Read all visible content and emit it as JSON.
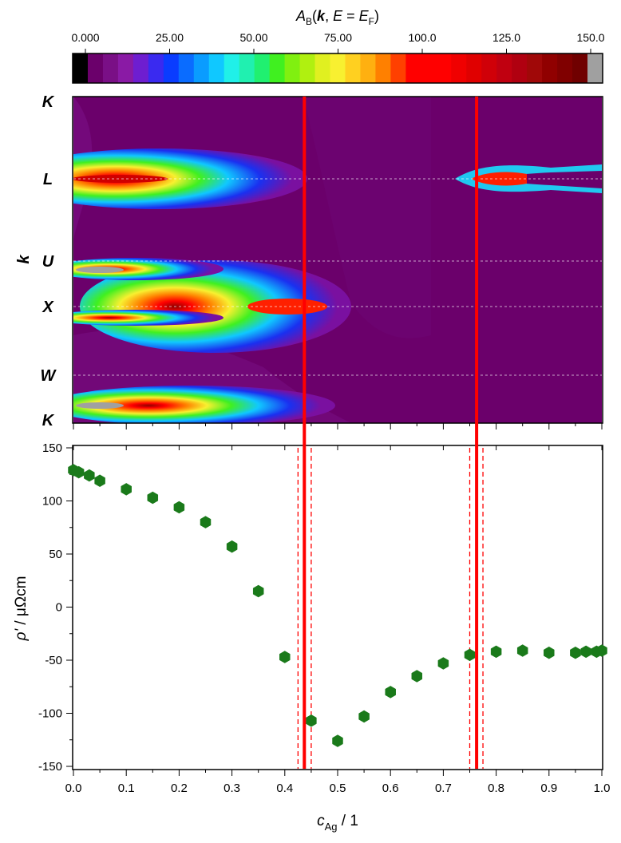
{
  "chart_data": [
    {
      "type": "heatmap",
      "title": "",
      "colorbar": {
        "label_main": "A",
        "label_sub": "B",
        "label_open": "(",
        "label_k": "k",
        "label_mid": ", ",
        "label_E": "E",
        "label_eq": " = ",
        "label_E2": "E",
        "label_sub2": "F",
        "label_close": ")",
        "ticks": [
          "0.000",
          "25.00",
          "50.00",
          "75.00",
          "100.0",
          "125.0",
          "150.0"
        ],
        "range": [
          0,
          150
        ],
        "colors": [
          "#000000",
          "#6b006b",
          "#7a0f86",
          "#8a1aa5",
          "#6e1ed0",
          "#3a2af0",
          "#0a3cff",
          "#0a6cff",
          "#0a9cff",
          "#10c8ff",
          "#20f0e8",
          "#20f0b0",
          "#20f070",
          "#40f020",
          "#80f010",
          "#b0f010",
          "#e0f020",
          "#f8f030",
          "#ffd020",
          "#ffb010",
          "#ff8000",
          "#ff4000",
          "#ff0000",
          "#ff0000",
          "#ff0000",
          "#f00000",
          "#e00000",
          "#d00008",
          "#c00010",
          "#b00010",
          "#a00808",
          "#900000",
          "#800000",
          "#700000",
          "#a0a0a0"
        ]
      },
      "ylabel": "k",
      "y_ticks": [
        "K",
        "L",
        "U",
        "X",
        "W",
        "K"
      ],
      "x_range": [
        0,
        1
      ],
      "background_color": "#6b006b",
      "features": [
        {
          "k_point": "L",
          "c_from": 0.0,
          "c_to": 0.42,
          "peak_c": 0.05,
          "max": 100
        },
        {
          "k_point": "L",
          "c_from": 0.7,
          "c_to": 1.0,
          "peak_c": 0.8,
          "max": 140
        },
        {
          "k_point": "U",
          "c_from": 0.0,
          "c_to": 0.3,
          "peak_c": 0.05,
          "max": 150
        },
        {
          "k_point": "X",
          "c_from": 0.0,
          "c_to": 0.52,
          "peak_c": 0.42,
          "max": 110
        },
        {
          "k_point": "K",
          "c_from": 0.0,
          "c_to": 0.45,
          "peak_c": 0.05,
          "max": 150
        }
      ],
      "vertical_lines": [
        0.435,
        0.762
      ]
    },
    {
      "type": "scatter",
      "title": "",
      "xlabel_main": "c",
      "xlabel_sub": "Ag",
      "xlabel_rest": " / 1",
      "ylabel_main": "ρ'",
      "ylabel_rest": " / μΩcm",
      "xlim": [
        0,
        1
      ],
      "ylim": [
        -150,
        150
      ],
      "x_ticks": [
        "0.0",
        "0.1",
        "0.2",
        "0.3",
        "0.4",
        "0.5",
        "0.6",
        "0.7",
        "0.8",
        "0.9",
        "1.0"
      ],
      "y_ticks": [
        "150",
        "100",
        "50",
        "0",
        "-50",
        "-100",
        "-150"
      ],
      "marker_color": "#1a7a1a",
      "series": [
        {
          "x": [
            0.0,
            0.01,
            0.03,
            0.05,
            0.1,
            0.15,
            0.2,
            0.25,
            0.3,
            0.35,
            0.4,
            0.45,
            0.5,
            0.55,
            0.6,
            0.65,
            0.7,
            0.75,
            0.8,
            0.85,
            0.9,
            0.95,
            0.97,
            0.99,
            1.0
          ],
          "y": [
            129,
            127,
            124,
            119,
            111,
            103,
            94,
            80,
            57,
            15,
            -47,
            -107,
            -126,
            -103,
            -80,
            -65,
            -53,
            -45,
            -42,
            -41,
            -43,
            -43,
            -42,
            -42,
            -41
          ]
        }
      ],
      "vertical_lines": [
        0.437,
        0.763
      ],
      "dashed_lines": [
        0.425,
        0.45,
        0.75,
        0.775
      ]
    }
  ]
}
